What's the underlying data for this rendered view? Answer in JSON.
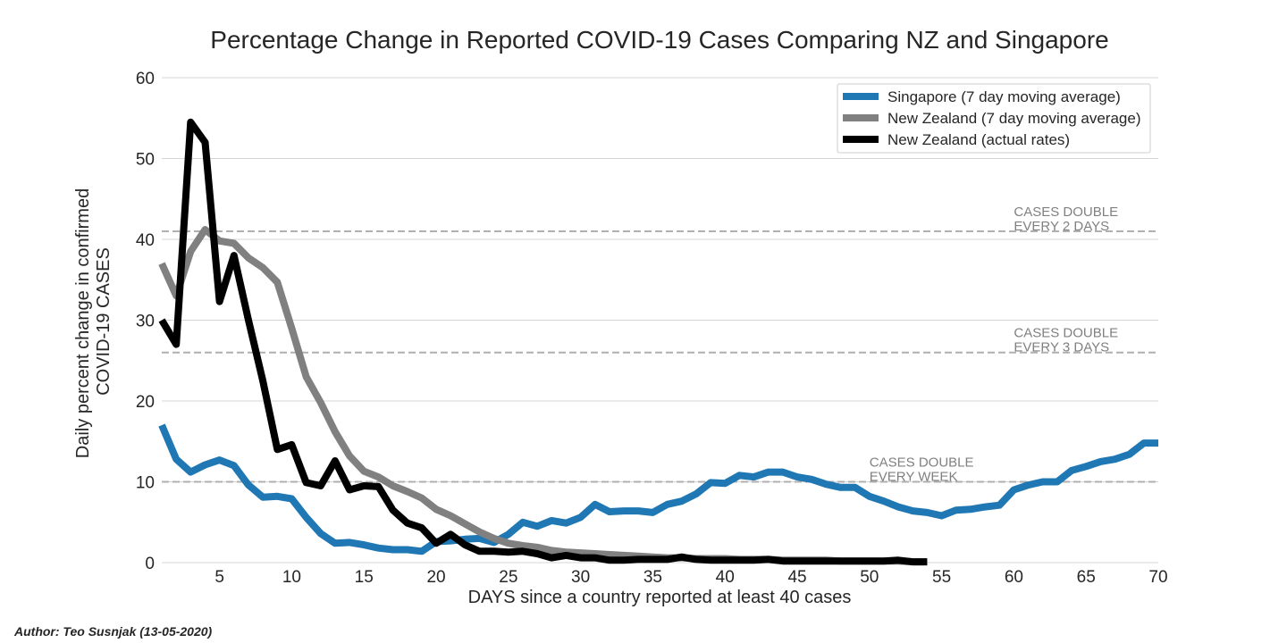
{
  "chart_data": {
    "type": "line",
    "title": "Percentage Change in Reported COVID-19 Cases Comparing NZ and Singapore",
    "xlabel": "DAYS since a country reported at least 40 cases",
    "ylabel_line1": "Daily percent change in confirmed",
    "ylabel_line2": "COVID-19 CASES",
    "xlim": [
      1,
      70
    ],
    "ylim": [
      0,
      60
    ],
    "x_ticks": [
      5,
      10,
      15,
      20,
      25,
      30,
      35,
      40,
      45,
      50,
      55,
      60,
      65,
      70
    ],
    "y_ticks": [
      0,
      10,
      20,
      30,
      40,
      50,
      60
    ],
    "grid": "horizontal",
    "legend_position": "top-right",
    "series": [
      {
        "name": "Singapore (7 day moving average)",
        "color": "#1f77b4",
        "x": [
          1,
          2,
          3,
          4,
          5,
          6,
          7,
          8,
          9,
          10,
          11,
          12,
          13,
          14,
          15,
          16,
          17,
          18,
          19,
          20,
          21,
          22,
          23,
          24,
          25,
          26,
          27,
          28,
          29,
          30,
          31,
          32,
          33,
          34,
          35,
          36,
          37,
          38,
          39,
          40,
          41,
          42,
          43,
          44,
          45,
          46,
          47,
          48,
          49,
          50,
          51,
          52,
          53,
          54,
          55,
          56,
          57,
          58,
          59,
          60,
          61,
          62,
          63,
          64,
          65,
          66,
          67,
          68,
          69,
          70
        ],
        "values": [
          17,
          12.8,
          11.2,
          12.1,
          12.7,
          12,
          9.6,
          8.1,
          8.2,
          7.9,
          5.6,
          3.6,
          2.4,
          2.5,
          2.2,
          1.8,
          1.6,
          1.6,
          1.4,
          2.6,
          2.7,
          2.9,
          3,
          2.5,
          3.5,
          5,
          4.5,
          5.2,
          4.9,
          5.6,
          7.2,
          6.3,
          6.4,
          6.4,
          6.2,
          7.2,
          7.6,
          8.5,
          9.9,
          9.8,
          10.8,
          10.6,
          11.2,
          11.2,
          10.6,
          10.3,
          9.7,
          9.3,
          9.3,
          8.2,
          7.6,
          6.9,
          6.4,
          6.2,
          5.8,
          6.5,
          6.6,
          6.9,
          7.1,
          9,
          9.6,
          10,
          10,
          11.4,
          11.9,
          12.5,
          12.8,
          13.4,
          14.8,
          14.8
        ]
      },
      {
        "name": "New Zealand (7 day moving average)",
        "color": "#808080",
        "x": [
          1,
          2,
          3,
          4,
          5,
          6,
          7,
          8,
          9,
          10,
          11,
          12,
          13,
          14,
          15,
          16,
          17,
          18,
          19,
          20,
          21,
          22,
          23,
          24,
          25,
          26,
          27,
          28,
          29,
          30,
          31,
          32,
          33,
          34,
          35,
          36,
          37,
          38,
          39,
          40,
          41,
          42,
          43,
          44,
          45,
          46,
          47,
          48,
          49,
          50,
          51,
          52,
          53,
          54
        ],
        "values": [
          37,
          33,
          38.5,
          41.2,
          39.8,
          39.5,
          37.7,
          36.5,
          34.7,
          29,
          23,
          19.8,
          16.2,
          13.2,
          11.3,
          10.6,
          9.5,
          8.8,
          8,
          6.6,
          5.8,
          4.8,
          3.8,
          3,
          2.4,
          2.1,
          1.9,
          1.5,
          1.3,
          1.2,
          1.1,
          1,
          0.9,
          0.8,
          0.7,
          0.6,
          0.6,
          0.5,
          0.5,
          0.5,
          0.4,
          0.4,
          0.4,
          0.3,
          0.3,
          0.3,
          0.3,
          0.2,
          0.2,
          0.2,
          0.2,
          0.2,
          0.1,
          0.1
        ]
      },
      {
        "name": "New Zealand (actual rates)",
        "color": "#000000",
        "x": [
          1,
          2,
          3,
          4,
          5,
          6,
          7,
          8,
          9,
          10,
          11,
          12,
          13,
          14,
          15,
          16,
          17,
          18,
          19,
          20,
          21,
          22,
          23,
          24,
          25,
          26,
          27,
          28,
          29,
          30,
          31,
          32,
          33,
          34,
          35,
          36,
          37,
          38,
          39,
          40,
          41,
          42,
          43,
          44,
          45,
          46,
          47,
          48,
          49,
          50,
          51,
          52,
          53,
          54
        ],
        "values": [
          30,
          27,
          54.5,
          52,
          32.3,
          38,
          30,
          22.5,
          14,
          14.6,
          9.9,
          9.5,
          12.6,
          9,
          9.5,
          9.4,
          6.5,
          4.9,
          4.3,
          2.4,
          3.5,
          2.2,
          1.4,
          1.4,
          1.3,
          1.4,
          1.1,
          0.6,
          0.9,
          0.6,
          0.6,
          0.3,
          0.3,
          0.4,
          0.4,
          0.4,
          0.7,
          0.4,
          0.3,
          0.3,
          0.3,
          0.3,
          0.4,
          0.2,
          0.2,
          0.2,
          0.2,
          0.2,
          0.2,
          0.2,
          0.2,
          0.3,
          0.1,
          0.1
        ]
      }
    ],
    "reference_lines": [
      {
        "y": 41,
        "label_line1": "CASES DOUBLE",
        "label_line2": "EVERY 2 DAYS",
        "label_x": 60
      },
      {
        "y": 26,
        "label_line1": "CASES DOUBLE",
        "label_line2": "EVERY 3 DAYS",
        "label_x": 60
      },
      {
        "y": 10,
        "label_line1": "CASES DOUBLE",
        "label_line2": "EVERY WEEK",
        "label_x": 50
      }
    ]
  },
  "footer": {
    "author": "Author: Teo Susnjak (13-05-2020)"
  }
}
